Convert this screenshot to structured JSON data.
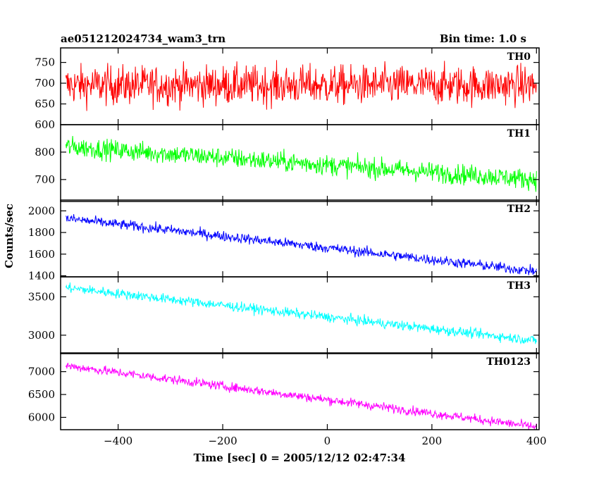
{
  "header": {
    "title": "ae051212024734_wam3_trn",
    "bin_time": "Bin time: 1.0 s"
  },
  "axes": {
    "xlabel": "Time [sec] 0 = 2005/12/12 02:47:34",
    "ylabel": "Counts/sec"
  },
  "chart_data": {
    "type": "line",
    "x_range": [
      -510,
      405
    ],
    "x_ticks": [
      -400,
      -200,
      0,
      200,
      400
    ],
    "bin_time_s": 1.0,
    "panels": [
      {
        "name": "TH0",
        "color": "#ff0000",
        "ylim": [
          600,
          785
        ],
        "yticks": [
          600,
          650,
          700,
          750
        ],
        "trend_start": 695,
        "trend_end": 695,
        "noise_amplitude": 45
      },
      {
        "name": "TH1",
        "color": "#00ff00",
        "ylim": [
          620,
          900
        ],
        "yticks": [
          700,
          800
        ],
        "trend_start": 820,
        "trend_end": 700,
        "noise_amplitude": 35
      },
      {
        "name": "TH2",
        "color": "#0000ff",
        "ylim": [
          1390,
          2100
        ],
        "yticks": [
          1400,
          1600,
          1800,
          2000
        ],
        "trend_start": 1930,
        "trend_end": 1440,
        "noise_amplitude": 45
      },
      {
        "name": "TH3",
        "color": "#00ffff",
        "ylim": [
          2760,
          3760
        ],
        "yticks": [
          3000,
          3500
        ],
        "trend_start": 3620,
        "trend_end": 2930,
        "noise_amplitude": 60
      },
      {
        "name": "TH0123",
        "color": "#ff00ff",
        "ylim": [
          5730,
          7410
        ],
        "yticks": [
          6000,
          6500,
          7000
        ],
        "trend_start": 7130,
        "trend_end": 5790,
        "noise_amplitude": 95
      }
    ]
  }
}
